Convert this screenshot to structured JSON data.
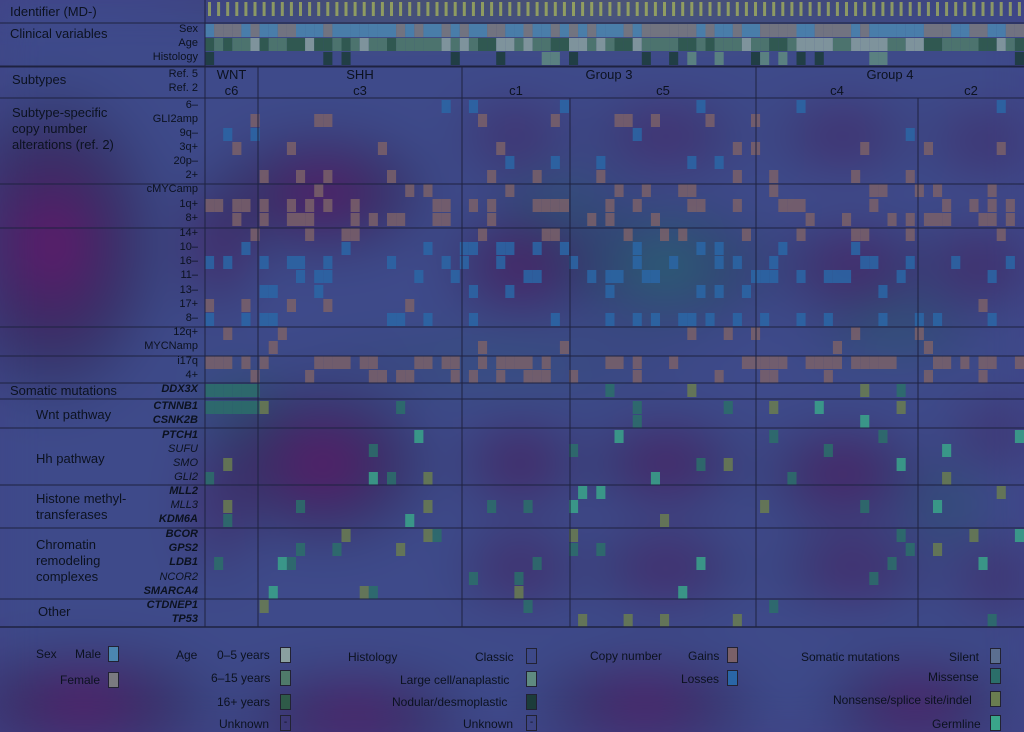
{
  "chart_data": {
    "type": "heatmap",
    "title": "",
    "column_header": "Identifier (MD-)",
    "sections": [
      {
        "label": "Clinical variables",
        "rows": [
          "Sex",
          "Age",
          "Histology"
        ]
      },
      {
        "label": "Subtypes",
        "rows": [
          "Ref. 5",
          "Ref. 2"
        ]
      },
      {
        "label": "Subtype-specific copy number alterations (ref. 2)",
        "rows": [
          "6–",
          "GLI2amp",
          "9q–",
          "3q+",
          "20p–",
          "2+",
          "cMYCamp",
          "1q+",
          "8+",
          "14+",
          "10–",
          "16–",
          "11–",
          "13–",
          "17+",
          "8–",
          "12q+",
          "MYCNamp",
          "i17q",
          "4+"
        ]
      },
      {
        "label": "Somatic mutations",
        "rows": [
          "DDX3X"
        ]
      },
      {
        "label": "Wnt pathway",
        "rows": [
          "CTNNB1",
          "CSNK2B"
        ]
      },
      {
        "label": "Hh pathway",
        "rows": [
          "PTCH1",
          "SUFU",
          "SMO",
          "GLI2"
        ]
      },
      {
        "label": "Histone methyl-transferases",
        "rows": [
          "MLL2",
          "MLL3",
          "KDM6A"
        ]
      },
      {
        "label": "Chromatin remodeling complexes",
        "rows": [
          "BCOR",
          "GPS2",
          "LDB1",
          "NCOR2",
          "SMARCA4"
        ]
      },
      {
        "label": "Other",
        "rows": [
          "CTDNEP1",
          "TP53"
        ]
      }
    ],
    "subtype_groups": [
      {
        "ref5": "WNT",
        "ref2": [
          "c6"
        ]
      },
      {
        "ref5": "SHH",
        "ref2": [
          "c3"
        ]
      },
      {
        "ref5": "Group 3",
        "ref2": [
          "c1",
          "c5"
        ]
      },
      {
        "ref5": "Group 4",
        "ref2": [
          "c4",
          "c2"
        ]
      }
    ],
    "legend": {
      "sex": {
        "title": "Sex",
        "items": [
          "Male",
          "Female"
        ]
      },
      "age": {
        "title": "Age",
        "items": [
          "0–5 years",
          "6–15 years",
          "16+ years",
          "Unknown"
        ],
        "unknown_symbol": "-"
      },
      "histology": {
        "title": "Histology",
        "items": [
          "Classic",
          "Large cell/anaplastic",
          "Nodular/desmoplastic",
          "Unknown"
        ],
        "unknown_symbol": "-"
      },
      "copy_number": {
        "title": "Copy number",
        "items": [
          "Gains",
          "Losses"
        ]
      },
      "somatic": {
        "title": "Somatic mutations",
        "items": [
          "Silent",
          "Missense",
          "Nonsense/splice site/indel",
          "Germline"
        ]
      }
    },
    "colors": {
      "background": "#433f86",
      "heat_low": "#4a1a6e",
      "heat_mid": "#2a8a8c",
      "heat_high": "#c8e03a",
      "gain": "#7a6068",
      "loss": "#2a66a6",
      "grid_line": "#1e2240",
      "male": "#4b86b0",
      "female": "#7a7a80",
      "age_0_5": "#8aa0a0",
      "age_6_15": "#4f7a6a",
      "age_16": "#2e5a48",
      "silent": "#5b6f90",
      "missense": "#2b6e6a",
      "nonsense": "#6a7d50",
      "germline": "#3aa58a"
    }
  }
}
